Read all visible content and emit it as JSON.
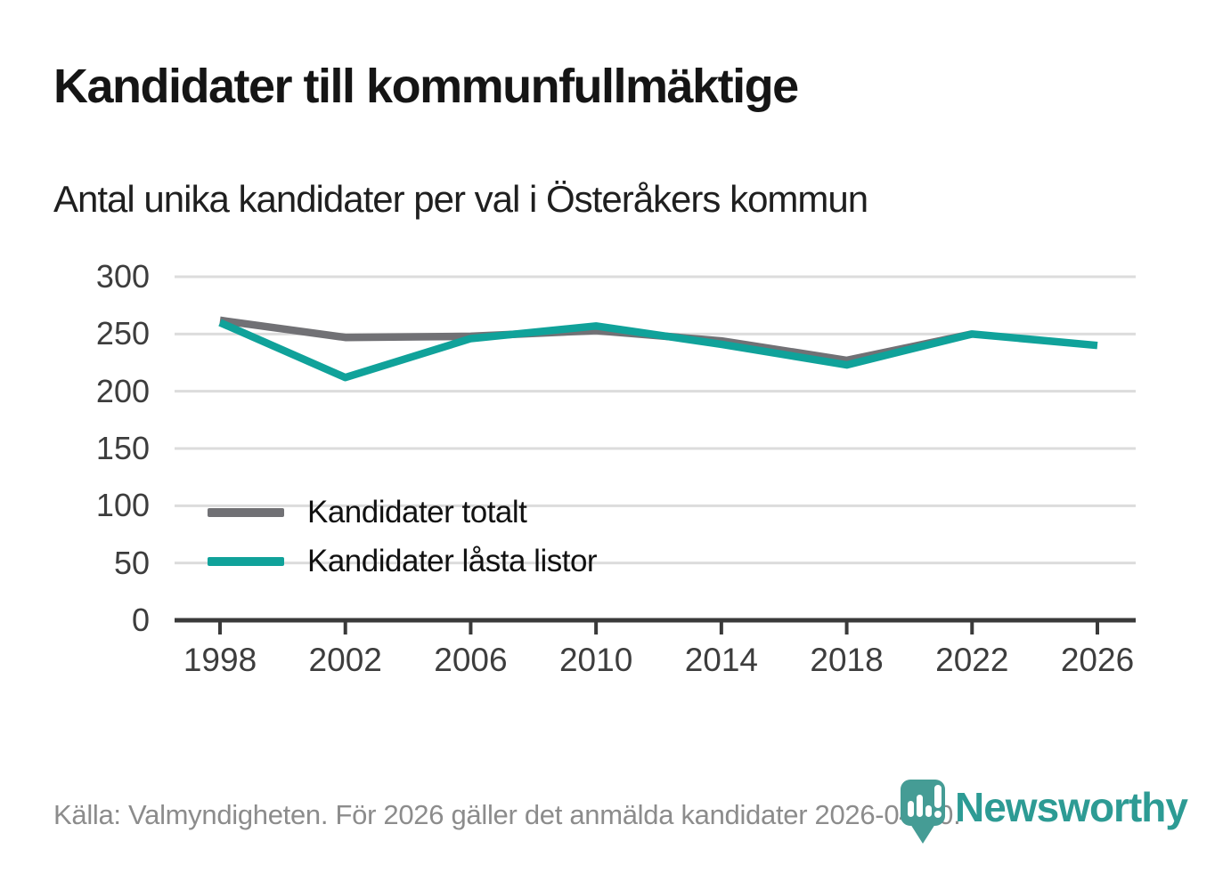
{
  "header": {
    "title": "Kandidater till kommunfullmäktige",
    "subtitle": "Antal unika kandidater per val i Österåkers kommun"
  },
  "chart_data": {
    "type": "line",
    "x": [
      1998,
      2002,
      2006,
      2010,
      2014,
      2018,
      2022,
      2026
    ],
    "series": [
      {
        "name": "Kandidater totalt",
        "color": "#717175",
        "values": [
          262,
          247,
          248,
          253,
          244,
          227,
          250,
          null
        ]
      },
      {
        "name": "Kandidater låsta listor",
        "color": "#10a29a",
        "values": [
          260,
          212,
          246,
          257,
          241,
          223,
          250,
          240
        ]
      }
    ],
    "ylim": [
      0,
      300
    ],
    "yticks": [
      0,
      50,
      100,
      150,
      200,
      250,
      300
    ],
    "grid": true,
    "legend_position": "inside-left-middle",
    "colors": {
      "gridline": "#dcdcdc",
      "axis": "#3a3a3a",
      "tick_label": "#3d3d3d"
    }
  },
  "footer": {
    "source": "Källa: Valmyndigheten. För 2026 gäller det anmälda kandidater 2026-04-10.",
    "logo_text": "Newsworthy",
    "logo_color": "#2d9b94",
    "logo_icon_color": "#459c95"
  }
}
